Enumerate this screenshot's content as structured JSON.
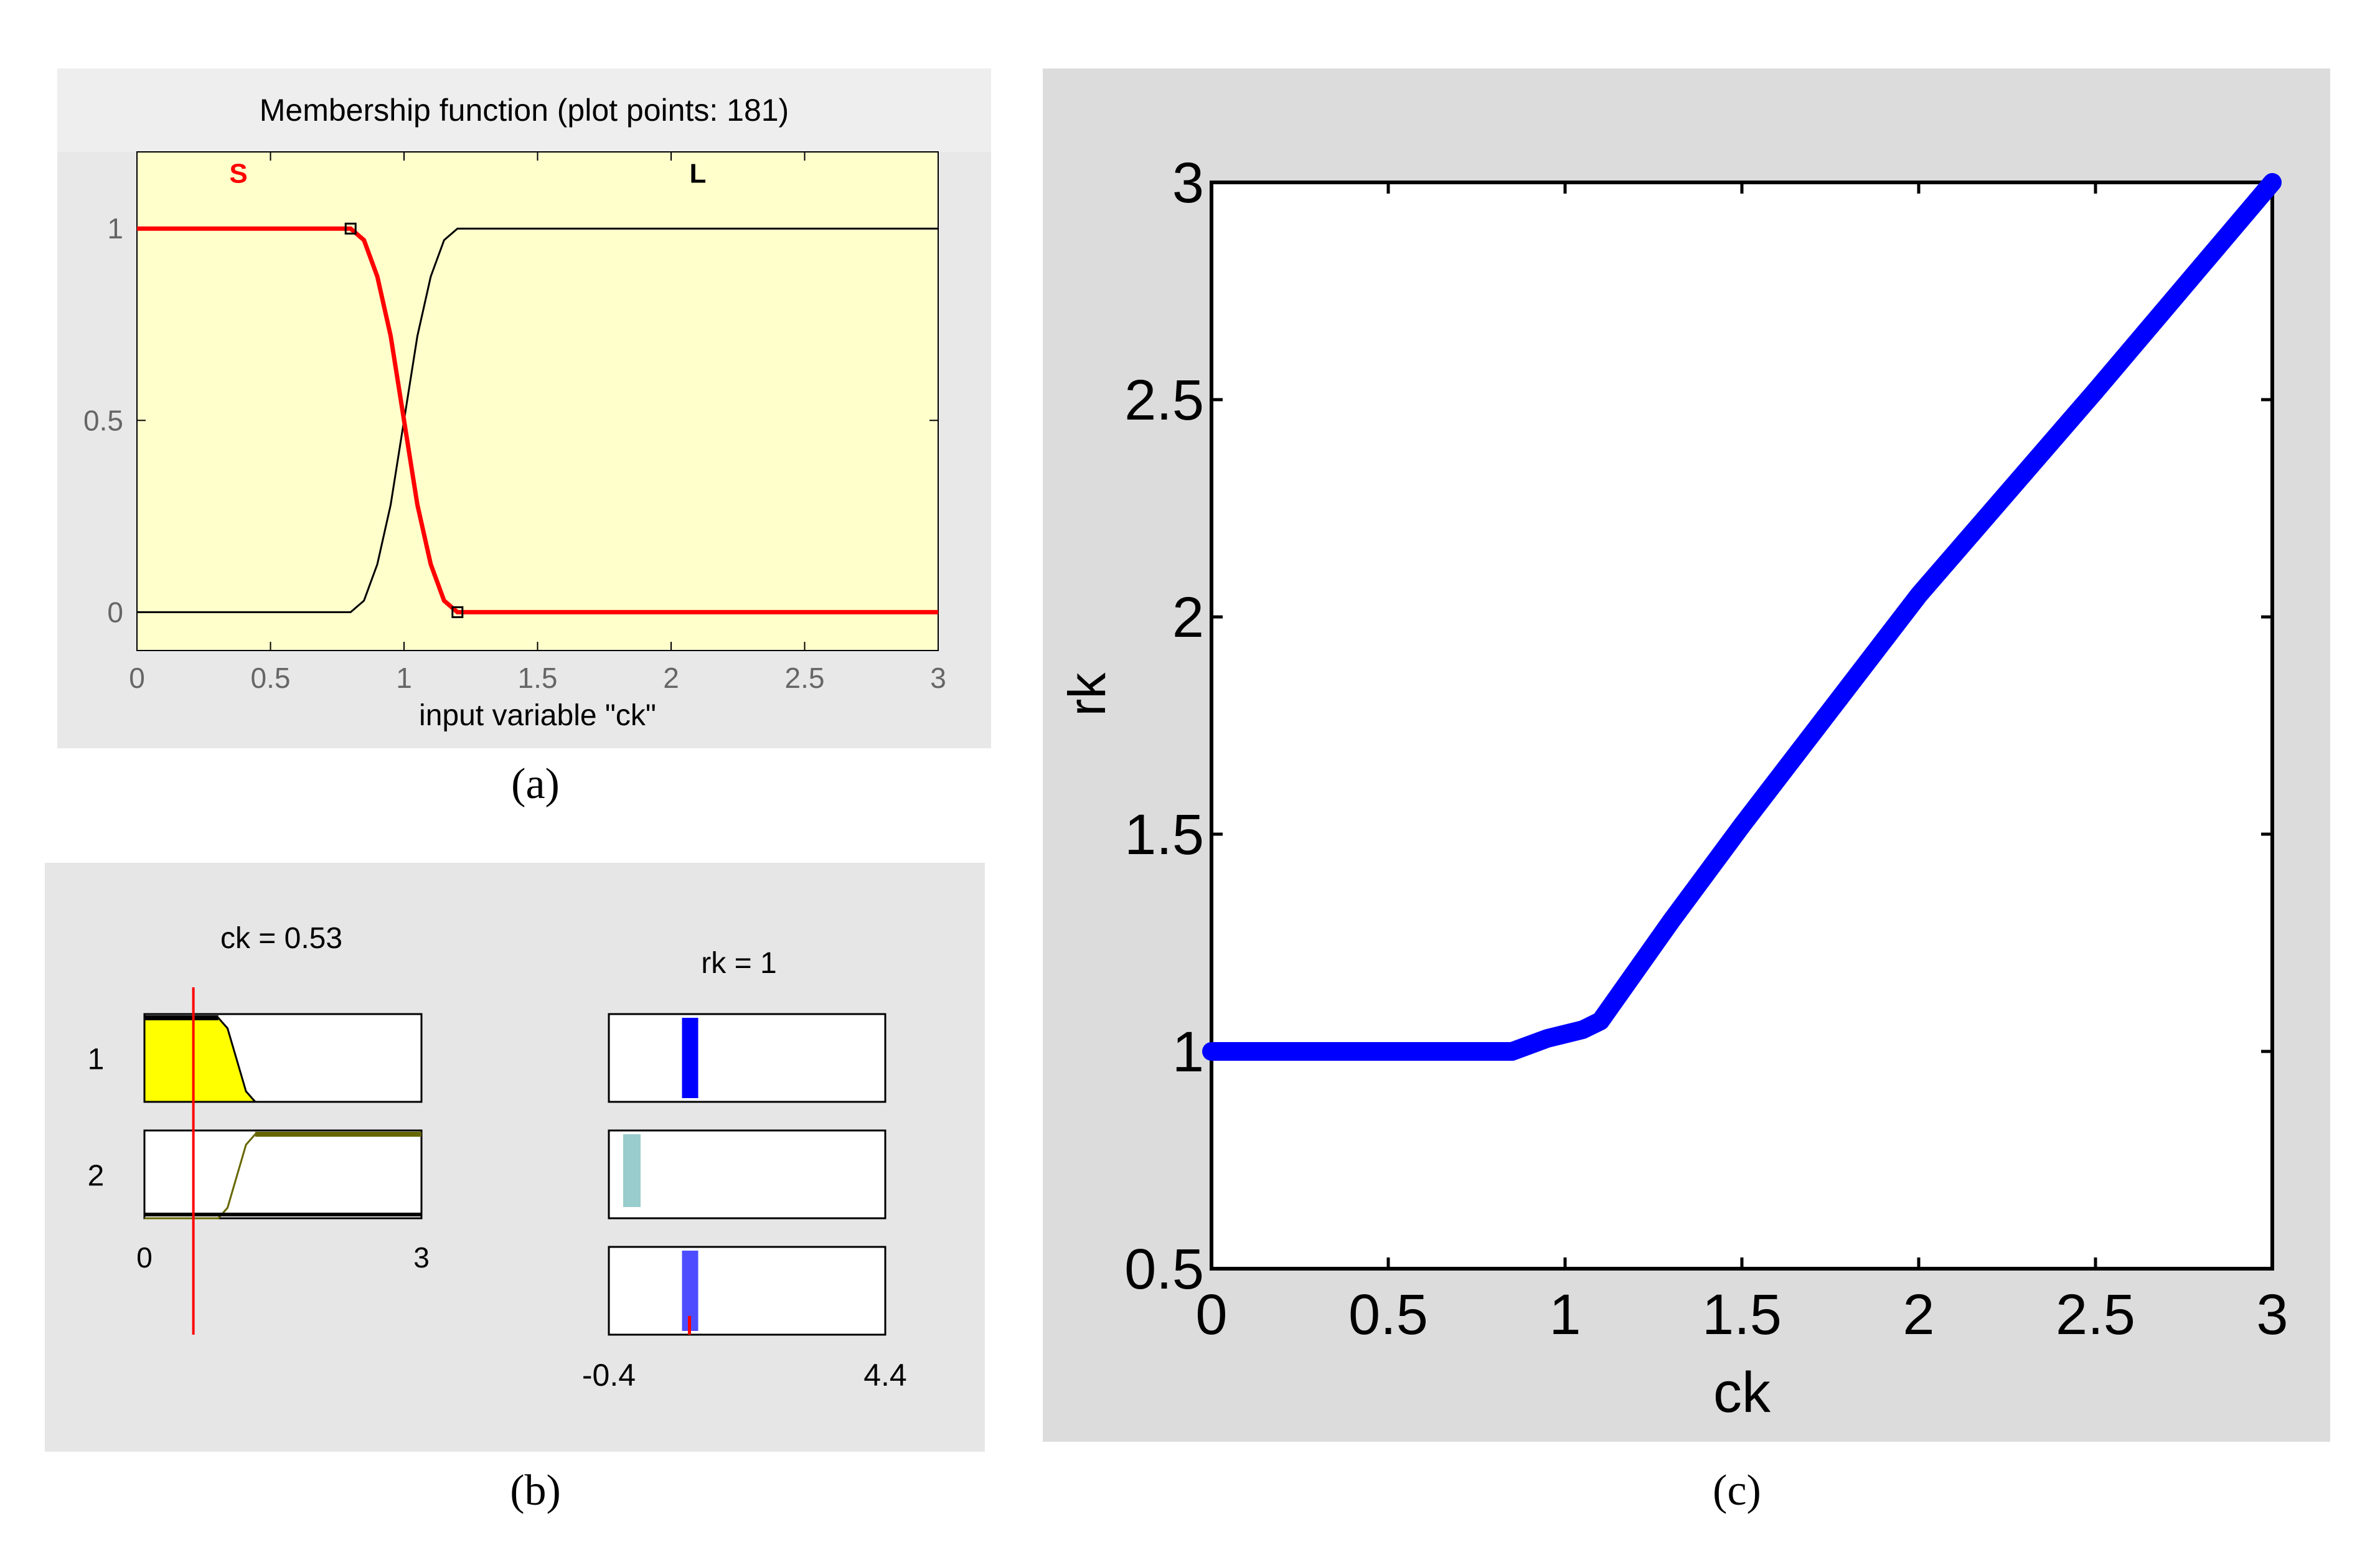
{
  "captions": {
    "a": "(a)",
    "b": "(b)",
    "c": "(c)"
  },
  "chart_data": [
    {
      "id": "a",
      "type": "line",
      "title": "Membership function (plot points: 181)",
      "xlabel": "input variable \"ck\"",
      "ylabel": "",
      "xlim": [
        0,
        3
      ],
      "ylim": [
        -0.1,
        1.2
      ],
      "xticks": [
        "0",
        "0.5",
        "1",
        "1.5",
        "2",
        "2.5",
        "3"
      ],
      "yticks": [
        "0",
        "0.5",
        "1"
      ],
      "background": "#ffffcc",
      "series": [
        {
          "name": "S",
          "color": "#ff0000",
          "x": [
            0,
            0.8,
            0.85,
            0.9,
            0.95,
            1.0,
            1.05,
            1.1,
            1.15,
            1.2,
            3
          ],
          "y": [
            1,
            1,
            0.97,
            0.875,
            0.72,
            0.5,
            0.28,
            0.125,
            0.03,
            0,
            0
          ]
        },
        {
          "name": "L",
          "color": "#000000",
          "x": [
            0,
            0.8,
            0.85,
            0.9,
            0.95,
            1.0,
            1.05,
            1.1,
            1.15,
            1.2,
            3
          ],
          "y": [
            0,
            0,
            0.03,
            0.125,
            0.28,
            0.5,
            0.72,
            0.875,
            0.97,
            1,
            1
          ]
        }
      ],
      "markers": [
        {
          "x": 0.8,
          "y": 1
        },
        {
          "x": 1.2,
          "y": 0
        }
      ]
    },
    {
      "id": "b",
      "type": "rule-viewer",
      "input_label": "ck = 0.53",
      "output_label": "rk = 1",
      "input_value": 0.53,
      "input_range": [
        "0",
        "3"
      ],
      "output_range": [
        "-0.4",
        "4.4"
      ],
      "rule_labels": [
        "1",
        "2"
      ],
      "colors": {
        "input_fill": "#ffff00",
        "output_rule1": "#0000ff",
        "output_rule2": "#99cccc",
        "output_aggregate": "#4d4dff",
        "cursor": "#ff0000"
      }
    },
    {
      "id": "c",
      "type": "line",
      "title": "",
      "xlabel": "ck",
      "ylabel": "rk",
      "xlim": [
        0,
        3
      ],
      "ylim": [
        0.5,
        3
      ],
      "xticks": [
        "0",
        "0.5",
        "1",
        "1.5",
        "2",
        "2.5",
        "3"
      ],
      "yticks": [
        "0.5",
        "1",
        "1.5",
        "2",
        "2.5",
        "3"
      ],
      "series": [
        {
          "color": "#0000ff",
          "x": [
            0,
            0.85,
            0.95,
            1.05,
            1.1,
            1.3,
            1.5,
            2.0,
            2.5,
            3.0
          ],
          "y": [
            1.0,
            1.0,
            1.03,
            1.05,
            1.07,
            1.3,
            1.52,
            2.05,
            2.52,
            3.0
          ]
        }
      ]
    }
  ]
}
